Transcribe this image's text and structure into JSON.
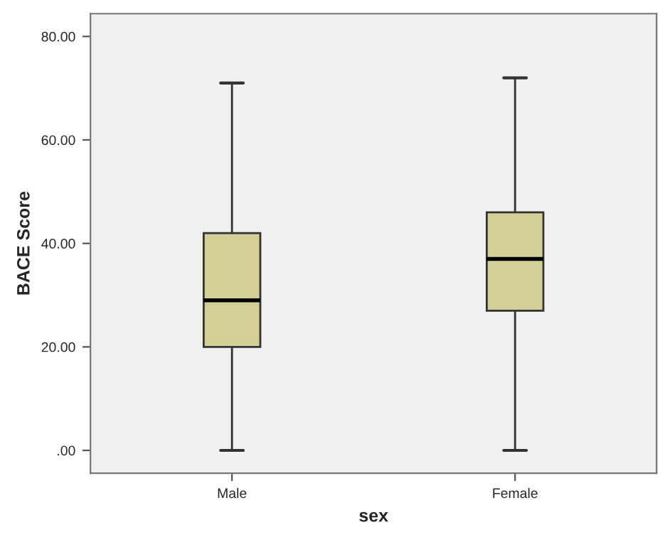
{
  "chart_data": {
    "type": "box",
    "xlabel": "sex",
    "ylabel": "BACE Score",
    "categories": [
      "Male",
      "Female"
    ],
    "boxes": [
      {
        "low": 0,
        "q1": 20,
        "median": 29,
        "q3": 42,
        "high": 71
      },
      {
        "low": 0,
        "q1": 27,
        "median": 37,
        "q3": 46,
        "high": 72
      }
    ],
    "color": "#d3cf96",
    "ylim": [
      -4.4,
      84.4
    ],
    "yticks": [
      {
        "value": 0,
        "label": ".00"
      },
      {
        "value": 20,
        "label": "20.00"
      },
      {
        "value": 40,
        "label": "40.00"
      },
      {
        "value": 60,
        "label": "60.00"
      },
      {
        "value": 80,
        "label": "80.00"
      }
    ],
    "grid": false
  }
}
